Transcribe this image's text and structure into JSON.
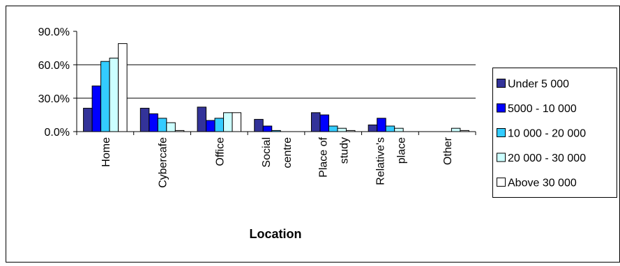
{
  "chart_data": {
    "type": "bar",
    "xlabel": "Location",
    "ylabel": "",
    "ylim": [
      0,
      90
    ],
    "yticks": [
      "0.0%",
      "30.0%",
      "60.0%",
      "90.0%"
    ],
    "ytick_values": [
      0,
      30,
      60,
      90
    ],
    "grid": "horizontal",
    "legend_position": "right",
    "categories": [
      [
        "Home"
      ],
      [
        "Cybercafe"
      ],
      [
        "Office"
      ],
      [
        "Social",
        "centre"
      ],
      [
        "Place of",
        "study"
      ],
      [
        "Relative's",
        "place"
      ],
      [
        "Other"
      ]
    ],
    "series": [
      {
        "name": "Under 5 000",
        "color": "#333399",
        "values": [
          21,
          21,
          22,
          11,
          17,
          6,
          0
        ]
      },
      {
        "name": "5000 - 10 000",
        "color": "#0000FF",
        "values": [
          41,
          16,
          10,
          5,
          15,
          12,
          0
        ]
      },
      {
        "name": "10 000 - 20 000",
        "color": "#33CCFF",
        "values": [
          63,
          12,
          12,
          1,
          5,
          5,
          0
        ]
      },
      {
        "name": "20 000 - 30 000",
        "color": "#CCFFFF",
        "values": [
          66,
          8,
          17,
          0,
          3,
          3,
          3
        ]
      },
      {
        "name": "Above 30 000",
        "color": "#FFFFFF",
        "values": [
          79,
          1,
          17,
          0,
          1,
          0,
          1
        ]
      }
    ]
  }
}
